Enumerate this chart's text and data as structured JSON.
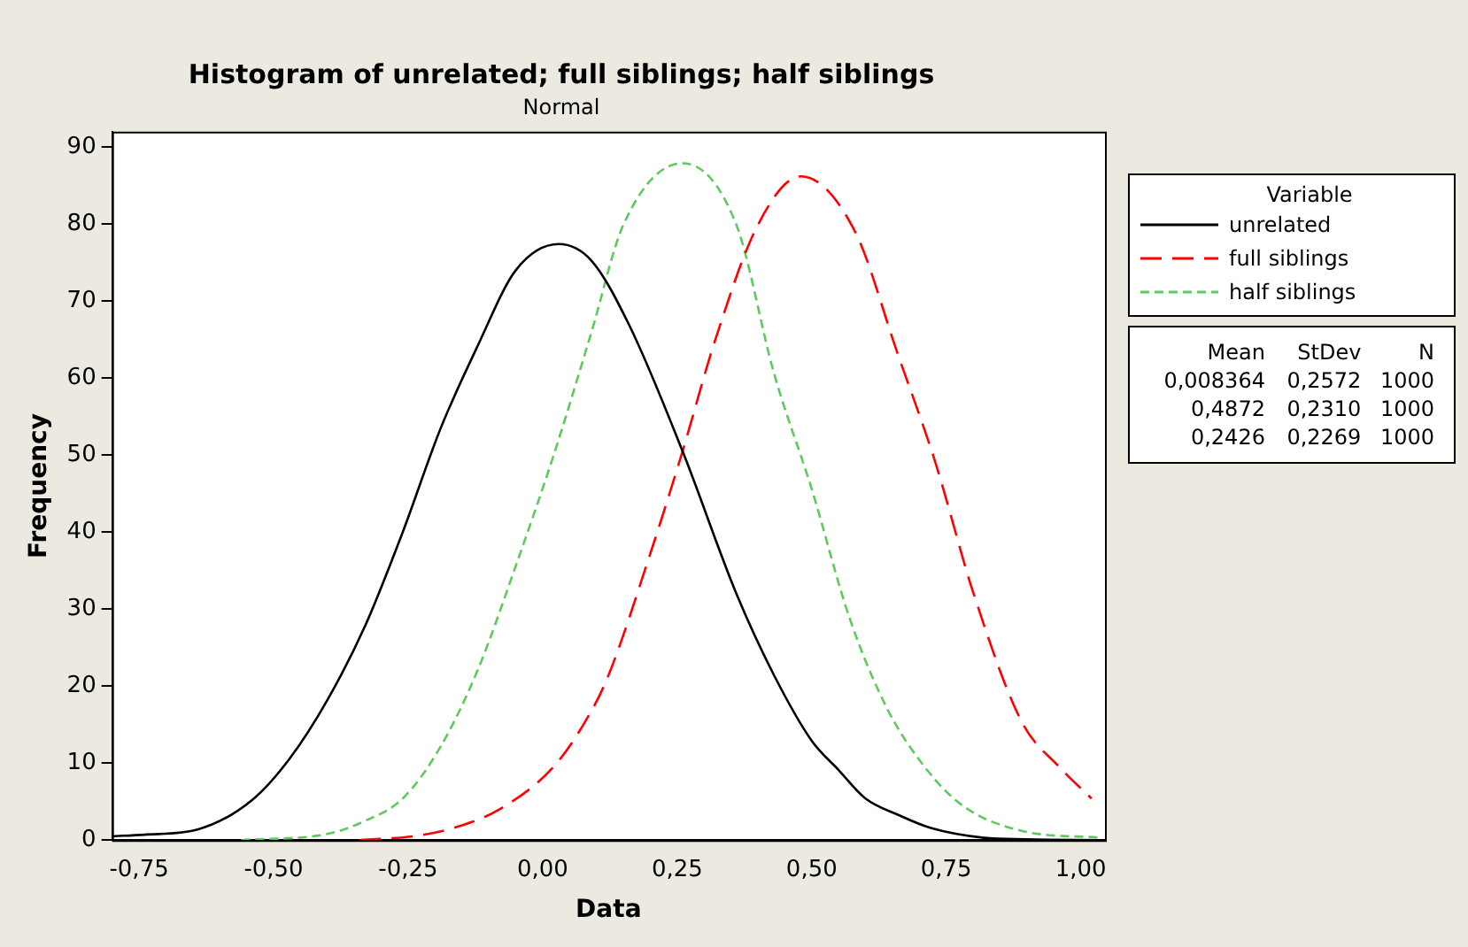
{
  "chart_data": {
    "type": "line",
    "title": "Histogram of unrelated; full siblings; half siblings",
    "subtitle": "Normal",
    "xlabel": "Data",
    "ylabel": "Frequency",
    "legend_title": "Variable",
    "legend": "right",
    "grid": false,
    "marker": "none",
    "xlim": [
      -0.8,
      1.045
    ],
    "ylim": [
      0,
      92
    ],
    "xticks": [
      {
        "value": -0.75,
        "label": "-0,75"
      },
      {
        "value": -0.5,
        "label": "-0,50"
      },
      {
        "value": -0.25,
        "label": "-0,25"
      },
      {
        "value": 0,
        "label": "0,00"
      },
      {
        "value": 0.25,
        "label": "0,25"
      },
      {
        "value": 0.5,
        "label": "0,50"
      },
      {
        "value": 0.75,
        "label": "0,75"
      },
      {
        "value": 1,
        "label": "1,00"
      }
    ],
    "yticks": [
      0,
      10,
      20,
      30,
      40,
      50,
      60,
      70,
      80,
      90
    ],
    "series": [
      {
        "name": "unrelated",
        "color": "#000000",
        "line_style": "solid",
        "x": [
          -0.8,
          -0.74,
          -0.64,
          -0.54,
          -0.47,
          -0.4,
          -0.33,
          -0.26,
          -0.19,
          -0.12,
          -0.05,
          0.03,
          0.09,
          0.16,
          0.26,
          0.36,
          0.43,
          0.5,
          0.55,
          0.6,
          0.66,
          0.72,
          0.82,
          0.9,
          1.045
        ],
        "values": [
          0.5,
          0.7,
          1.4,
          5.2,
          10.6,
          18.2,
          27.8,
          40,
          53.4,
          64.3,
          74,
          77.4,
          75.3,
          67,
          50.5,
          32,
          21.4,
          12.9,
          9.1,
          5.4,
          3.3,
          1.6,
          0.3,
          0.1,
          0
        ]
      },
      {
        "name": "full siblings",
        "color": "#ff0000",
        "line_style": "dashed",
        "x": [
          -0.34,
          -0.23,
          -0.16,
          -0.08,
          0.02,
          0.08,
          0.12,
          0.2,
          0.26,
          0.32,
          0.4,
          0.48,
          0.58,
          0.66,
          0.73,
          0.8,
          0.89,
          0.96,
          1.02
        ],
        "values": [
          0,
          0.6,
          1.7,
          4,
          9.5,
          15.5,
          21,
          37.2,
          50.5,
          64.8,
          79.9,
          86.2,
          79.1,
          63.1,
          49,
          32.2,
          15.4,
          9.5,
          5.4
        ]
      },
      {
        "name": "half siblings",
        "color": "#5fc85f",
        "line_style": "dashed",
        "x": [
          -0.56,
          -0.4,
          -0.33,
          -0.26,
          -0.19,
          -0.12,
          -0.05,
          0.02,
          0.09,
          0.15,
          0.26,
          0.36,
          0.43,
          0.5,
          0.57,
          0.64,
          0.71,
          0.78,
          0.89,
          1.04
        ],
        "values": [
          0,
          0.8,
          2.5,
          5.4,
          12.1,
          22.2,
          35.6,
          49.9,
          65.8,
          79.9,
          87.9,
          79.9,
          60.6,
          45.6,
          28.9,
          17.1,
          9.5,
          4.5,
          1.2,
          0.3
        ]
      }
    ],
    "annotations": [
      "Mean",
      "StDev",
      "N",
      "0,008364",
      "0,2572",
      "1000",
      "0,4872",
      "0,2310",
      "1000",
      "0,2426",
      "0,2269",
      "1000"
    ]
  }
}
